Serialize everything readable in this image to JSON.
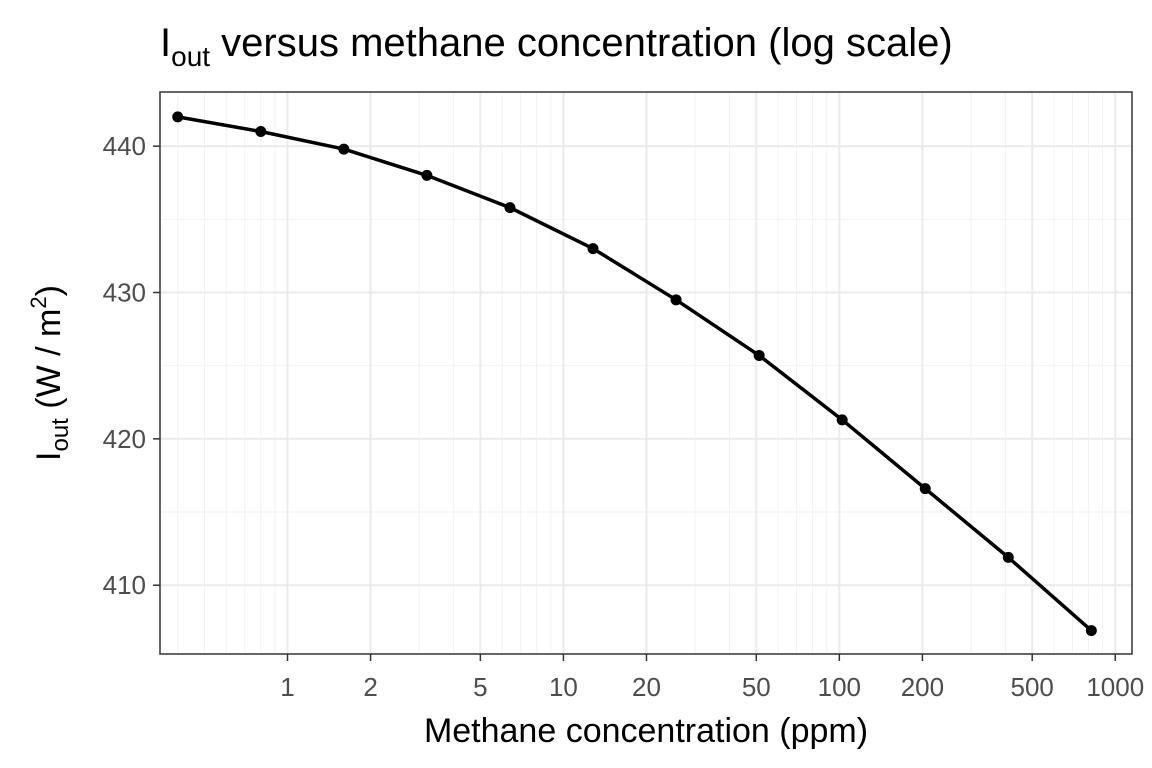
{
  "chart_data": {
    "type": "line",
    "title": {
      "base": "I",
      "subscript": "out",
      "rest": " versus methane concentration (log scale)"
    },
    "xlabel": "Methane concentration (ppm)",
    "ylabel": {
      "base": "I",
      "subscript": "out",
      "unit_open": " (W / m",
      "unit_sup": "2",
      "unit_close": ")"
    },
    "x_scale": "log10",
    "xlim": [
      0.345,
      1150
    ],
    "ylim": [
      405.3,
      443.7
    ],
    "x_ticks": [
      1,
      2,
      5,
      10,
      20,
      50,
      100,
      200,
      500,
      1000
    ],
    "x_tick_labels": [
      "1",
      "2",
      "5",
      "10",
      "20",
      "50",
      "100",
      "200",
      "500",
      "1000"
    ],
    "y_ticks": [
      410,
      420,
      430,
      440
    ],
    "y_tick_labels": [
      "410",
      "420",
      "430",
      "440"
    ],
    "grid": true,
    "legend": "none",
    "series": [
      {
        "color": "#000000",
        "x": [
          0.4,
          0.8,
          1.6,
          3.2,
          6.4,
          12.8,
          25.6,
          51.2,
          102.4,
          204.8,
          409.6,
          819.2
        ],
        "y": [
          442.0,
          441.0,
          439.8,
          438.0,
          435.8,
          433.0,
          429.5,
          425.7,
          421.3,
          416.6,
          411.9,
          406.9
        ]
      }
    ]
  }
}
